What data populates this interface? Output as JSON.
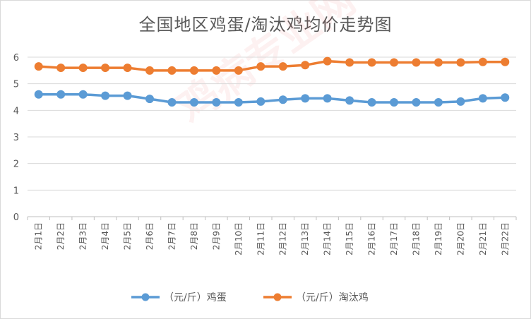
{
  "chart_data": {
    "type": "line",
    "title": "全国地区鸡蛋/淘汰鸡均价走势图",
    "xlabel": "",
    "ylabel": "",
    "categories": [
      "2月1日",
      "2月2日",
      "2月3日",
      "2月4日",
      "2月5日",
      "2月6日",
      "2月7日",
      "2月8日",
      "2月9日",
      "2月10日",
      "2月11日",
      "2月12日",
      "2月13日",
      "2月14日",
      "2月15日",
      "2月16日",
      "2月17日",
      "2月18日",
      "2月19日",
      "2月20日",
      "2月21日",
      "2月22日"
    ],
    "ylim": [
      0,
      6
    ],
    "yticks": [
      0,
      1,
      2,
      3,
      4,
      5,
      6
    ],
    "grid": true,
    "legend_position": "bottom",
    "series": [
      {
        "name": "（元/斤）鸡蛋",
        "color": "#5b9bd5",
        "values": [
          4.6,
          4.6,
          4.6,
          4.55,
          4.55,
          4.43,
          4.3,
          4.3,
          4.3,
          4.3,
          4.33,
          4.4,
          4.45,
          4.45,
          4.37,
          4.3,
          4.3,
          4.3,
          4.3,
          4.33,
          4.45,
          4.48
        ]
      },
      {
        "name": "（元/斤）淘汰鸡",
        "color": "#ed7d31",
        "values": [
          5.65,
          5.6,
          5.6,
          5.6,
          5.6,
          5.5,
          5.5,
          5.5,
          5.5,
          5.5,
          5.65,
          5.65,
          5.7,
          5.85,
          5.8,
          5.8,
          5.8,
          5.8,
          5.8,
          5.8,
          5.82,
          5.82
        ]
      }
    ]
  },
  "watermark_text": "鸡病专业网 www.jbzyw.com"
}
